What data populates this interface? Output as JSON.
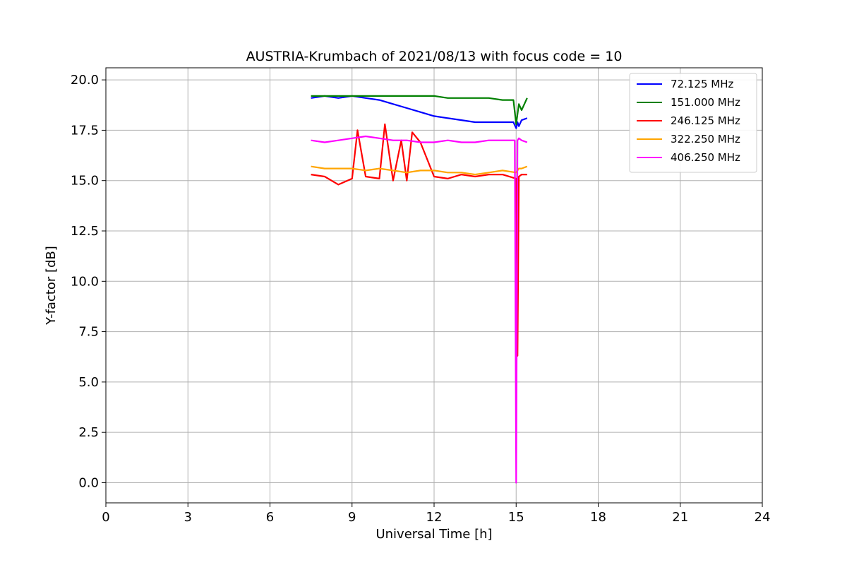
{
  "chart_data": {
    "type": "line",
    "title": "AUSTRIA-Krumbach of 2021/08/13 with focus code = 10",
    "xlabel": "Universal Time [h]",
    "ylabel": "Y-factor [dB]",
    "xlim": [
      0,
      24
    ],
    "ylim": [
      -1.0,
      20.6
    ],
    "xticks": [
      0,
      3,
      6,
      9,
      12,
      15,
      18,
      21,
      24
    ],
    "xtick_labels": [
      "0",
      "3",
      "6",
      "9",
      "12",
      "15",
      "18",
      "21",
      "24"
    ],
    "yticks": [
      0,
      2.5,
      5,
      7.5,
      10,
      12.5,
      15,
      17.5,
      20
    ],
    "ytick_labels": [
      "0.0",
      "2.5",
      "5.0",
      "7.5",
      "10.0",
      "12.5",
      "15.0",
      "17.5",
      "20.0"
    ],
    "grid": true,
    "legend_position": "top-right",
    "series": [
      {
        "name": " 72.125 MHz",
        "color": "#0000ff",
        "x": [
          7.5,
          8.0,
          8.5,
          9.0,
          9.5,
          10.0,
          10.5,
          11.0,
          11.5,
          12.0,
          12.5,
          13.0,
          13.5,
          14.0,
          14.5,
          14.9,
          15.0,
          15.05,
          15.1,
          15.2,
          15.4
        ],
        "y": [
          19.1,
          19.2,
          19.1,
          19.2,
          19.1,
          19.0,
          18.8,
          18.6,
          18.4,
          18.2,
          18.1,
          18.0,
          17.9,
          17.9,
          17.9,
          17.9,
          17.6,
          17.9,
          17.7,
          18.0,
          18.1
        ]
      },
      {
        "name": "151.000 MHz",
        "color": "#008000",
        "x": [
          7.5,
          8.0,
          8.5,
          9.0,
          9.5,
          10.0,
          10.5,
          11.0,
          11.5,
          12.0,
          12.5,
          13.0,
          13.5,
          14.0,
          14.5,
          14.9,
          15.0,
          15.05,
          15.1,
          15.2,
          15.4
        ],
        "y": [
          19.2,
          19.2,
          19.2,
          19.2,
          19.2,
          19.2,
          19.2,
          19.2,
          19.2,
          19.2,
          19.1,
          19.1,
          19.1,
          19.1,
          19.0,
          19.0,
          17.8,
          18.3,
          18.8,
          18.5,
          19.1
        ]
      },
      {
        "name": "246.125 MHz",
        "color": "#ff0000",
        "x": [
          7.5,
          8.0,
          8.5,
          9.0,
          9.2,
          9.5,
          10.0,
          10.2,
          10.5,
          10.8,
          11.0,
          11.2,
          11.5,
          12.0,
          12.5,
          13.0,
          13.5,
          14.0,
          14.5,
          15.0,
          15.05,
          15.1,
          15.2,
          15.4
        ],
        "y": [
          15.3,
          15.2,
          14.8,
          15.1,
          17.5,
          15.2,
          15.1,
          17.8,
          15.0,
          17.0,
          15.0,
          17.4,
          16.9,
          15.2,
          15.1,
          15.3,
          15.2,
          15.3,
          15.3,
          15.1,
          6.3,
          15.2,
          15.3,
          15.3
        ]
      },
      {
        "name": "322.250 MHz",
        "color": "#ffa500",
        "x": [
          7.5,
          8.0,
          8.5,
          9.0,
          9.5,
          10.0,
          10.5,
          11.0,
          11.5,
          12.0,
          12.5,
          13.0,
          13.5,
          14.0,
          14.5,
          15.0,
          15.1,
          15.2,
          15.4
        ],
        "y": [
          15.7,
          15.6,
          15.6,
          15.6,
          15.5,
          15.6,
          15.5,
          15.4,
          15.5,
          15.5,
          15.4,
          15.4,
          15.3,
          15.4,
          15.5,
          15.4,
          15.6,
          15.6,
          15.7
        ]
      },
      {
        "name": "406.250 MHz",
        "color": "#ff00ff",
        "x": [
          7.5,
          8.0,
          8.5,
          9.0,
          9.5,
          10.0,
          10.5,
          11.0,
          11.5,
          12.0,
          12.5,
          13.0,
          13.5,
          14.0,
          14.5,
          14.95,
          15.0,
          15.05,
          15.1,
          15.2,
          15.4
        ],
        "y": [
          17.0,
          16.9,
          17.0,
          17.1,
          17.2,
          17.1,
          17.0,
          17.0,
          16.9,
          16.9,
          17.0,
          16.9,
          16.9,
          17.0,
          17.0,
          17.0,
          0.0,
          17.0,
          17.1,
          17.0,
          16.9
        ]
      }
    ]
  }
}
